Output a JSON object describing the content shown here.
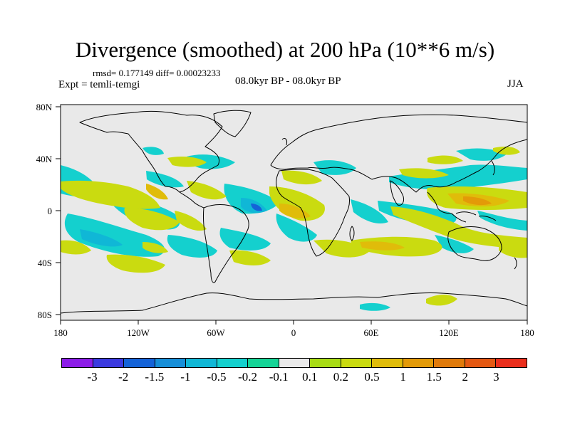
{
  "title": "Divergence (smoothed) at 200 hPa (10**6 m/s)",
  "stats": "rmsd= 0.177149 diff= 0.00023233",
  "expt": "Expt = temli-temgi",
  "period": "08.0kyr BP - 08.0kyr BP",
  "season": "JJA",
  "map": {
    "lat_ticks": [
      "80N",
      "40N",
      "0",
      "40S",
      "80S"
    ],
    "lon_ticks": [
      "180",
      "120W",
      "60W",
      "0",
      "60E",
      "120E",
      "180"
    ],
    "ocean_color": "#e9e9e9"
  },
  "colorbar": {
    "colors": [
      "#8c1ce8",
      "#3b3ae0",
      "#1463d8",
      "#168ed8",
      "#10b7d6",
      "#14d0ce",
      "#14d496",
      "#eaeaea",
      "#a8dc14",
      "#cadb10",
      "#e0bc0a",
      "#e39a08",
      "#e07a0a",
      "#e45812",
      "#ea2e1c"
    ],
    "labels": [
      "-3",
      "-2",
      "-1.5",
      "-1",
      "-0.5",
      "-0.2",
      "-0.1",
      "0.1",
      "0.2",
      "0.5",
      "1",
      "1.5",
      "2",
      "3"
    ]
  }
}
